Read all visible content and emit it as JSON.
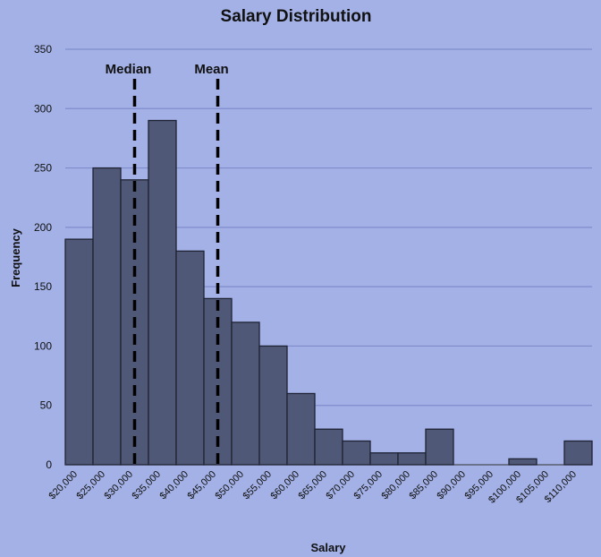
{
  "chart_data": {
    "type": "bar",
    "title": "Salary Distribution",
    "xlabel": "Salary",
    "ylabel": "Frequency",
    "ylim": [
      0,
      350
    ],
    "yticks": [
      0,
      50,
      100,
      150,
      200,
      250,
      300,
      350
    ],
    "grid": true,
    "categories": [
      "$20,000",
      "$25,000",
      "$30,000",
      "$35,000",
      "$40,000",
      "$45,000",
      "$50,000",
      "$55,000",
      "$60,000",
      "$65,000",
      "$70,000",
      "$75,000",
      "$80,000",
      "$85,000",
      "$90,000",
      "$95,000",
      "$100,000",
      "$105,000",
      "$110,000"
    ],
    "values": [
      190,
      250,
      240,
      290,
      180,
      140,
      120,
      100,
      60,
      30,
      20,
      10,
      10,
      30,
      0,
      0,
      5,
      0,
      20
    ],
    "annotations": [
      {
        "label": "Median",
        "category": "$30,000"
      },
      {
        "label": "Mean",
        "category": "$45,000"
      }
    ],
    "colors": {
      "bar": "#4f5877",
      "background": "#a3b1e6",
      "grid": "#7f8ccc"
    }
  }
}
